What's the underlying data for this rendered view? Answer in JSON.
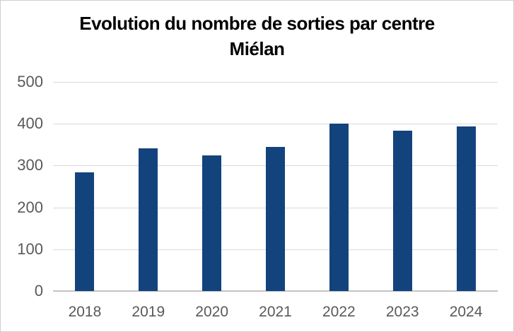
{
  "chart_data": {
    "type": "bar",
    "title": "Evolution du nombre de sorties par centre Miélan",
    "title_lines": [
      "Evolution du nombre de sorties par centre",
      "Miélan"
    ],
    "categories": [
      "2018",
      "2019",
      "2020",
      "2021",
      "2022",
      "2023",
      "2024"
    ],
    "values": [
      284,
      342,
      324,
      344,
      400,
      384,
      394
    ],
    "xlabel": "",
    "ylabel": "",
    "ylim": [
      0,
      500
    ],
    "y_ticks": [
      0,
      100,
      200,
      300,
      400,
      500
    ],
    "grid": true,
    "legend_position": "none",
    "colors": {
      "bar": "#12437d",
      "axis_labels": "#595959",
      "gridline": "#d9d9d9",
      "axis_line": "#c3c3c3",
      "title": "#000000"
    }
  }
}
